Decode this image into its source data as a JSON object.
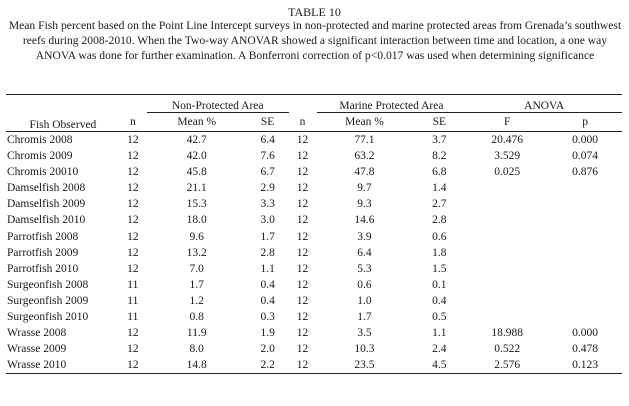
{
  "table_number": "TABLE 10",
  "caption": "Mean Fish percent based on the Point Line Intercept surveys in non-protected and marine protected areas from Grenada’s southwest reefs during 2008-2010. When the Two-way ANOVAR showed a significant interaction between time and location, a one way ANOVA was done for further examination. A Bonferroni correction of p<0.017 was used when determining significance",
  "headers": {
    "fish": "Fish Observed",
    "non_protected": "Non-Protected Area",
    "marine_protected": "Marine Protected Area",
    "anova": "ANOVA",
    "n": "n",
    "mean": "Mean %",
    "se": "SE",
    "f": "F",
    "p": "p"
  },
  "rows": [
    {
      "fish": "Chromis 2008",
      "np_n": "12",
      "np_mean": "42.7",
      "np_se": "6.4",
      "mp_n": "12",
      "mp_mean": "77.1",
      "mp_se": "3.7",
      "f": "20.476",
      "p": "0.000"
    },
    {
      "fish": "Chromis 2009",
      "np_n": "12",
      "np_mean": "42.0",
      "np_se": "7.6",
      "mp_n": "12",
      "mp_mean": "63.2",
      "mp_se": "8.2",
      "f": "3.529",
      "p": "0.074"
    },
    {
      "fish": "Chromis 20010",
      "np_n": "12",
      "np_mean": "45.8",
      "np_se": "6.7",
      "mp_n": "12",
      "mp_mean": "47.8",
      "mp_se": "6.8",
      "f": "0.025",
      "p": "0.876"
    },
    {
      "fish": "Damselfish 2008",
      "np_n": "12",
      "np_mean": "21.1",
      "np_se": "2.9",
      "mp_n": "12",
      "mp_mean": "9.7",
      "mp_se": "1.4",
      "f": "",
      "p": ""
    },
    {
      "fish": "Damselfish 2009",
      "np_n": "12",
      "np_mean": "15.3",
      "np_se": "3.3",
      "mp_n": "12",
      "mp_mean": "9.3",
      "mp_se": "2.7",
      "f": "",
      "p": ""
    },
    {
      "fish": "Damselfish 2010",
      "np_n": "12",
      "np_mean": "18.0",
      "np_se": "3.0",
      "mp_n": "12",
      "mp_mean": "14.6",
      "mp_se": "2.8",
      "f": "",
      "p": ""
    },
    {
      "fish": "Parrotfish 2008",
      "np_n": "12",
      "np_mean": "9.6",
      "np_se": "1.7",
      "mp_n": "12",
      "mp_mean": "3.9",
      "mp_se": "0.6",
      "f": "",
      "p": ""
    },
    {
      "fish": "Parrotfish 2009",
      "np_n": "12",
      "np_mean": "13.2",
      "np_se": "2.8",
      "mp_n": "12",
      "mp_mean": "6.4",
      "mp_se": "1.8",
      "f": "",
      "p": ""
    },
    {
      "fish": "Parrotfish 2010",
      "np_n": "12",
      "np_mean": "7.0",
      "np_se": "1.1",
      "mp_n": "12",
      "mp_mean": "5.3",
      "mp_se": "1.5",
      "f": "",
      "p": ""
    },
    {
      "fish": "Surgeonfish 2008",
      "np_n": "11",
      "np_mean": "1.7",
      "np_se": "0.4",
      "mp_n": "12",
      "mp_mean": "0.6",
      "mp_se": "0.1",
      "f": "",
      "p": ""
    },
    {
      "fish": "Surgeonfish 2009",
      "np_n": "11",
      "np_mean": "1.2",
      "np_se": "0.4",
      "mp_n": "12",
      "mp_mean": "1.0",
      "mp_se": "0.4",
      "f": "",
      "p": ""
    },
    {
      "fish": "Surgeonfish 2010",
      "np_n": "11",
      "np_mean": "0.8",
      "np_se": "0.3",
      "mp_n": "12",
      "mp_mean": "1.7",
      "mp_se": "0.5",
      "f": "",
      "p": ""
    },
    {
      "fish": "Wrasse 2008",
      "np_n": "12",
      "np_mean": "11.9",
      "np_se": "1.9",
      "mp_n": "12",
      "mp_mean": "3.5",
      "mp_se": "1.1",
      "f": "18.988",
      "p": "0.000"
    },
    {
      "fish": "Wrasse 2009",
      "np_n": "12",
      "np_mean": "8.0",
      "np_se": "2.0",
      "mp_n": "12",
      "mp_mean": "10.3",
      "mp_se": "2.4",
      "f": "0.522",
      "p": "0.478"
    },
    {
      "fish": "Wrasse 2010",
      "np_n": "12",
      "np_mean": "14.8",
      "np_se": "2.2",
      "mp_n": "12",
      "mp_mean": "23.5",
      "mp_se": "4.5",
      "f": "2.576",
      "p": "0.123"
    }
  ]
}
